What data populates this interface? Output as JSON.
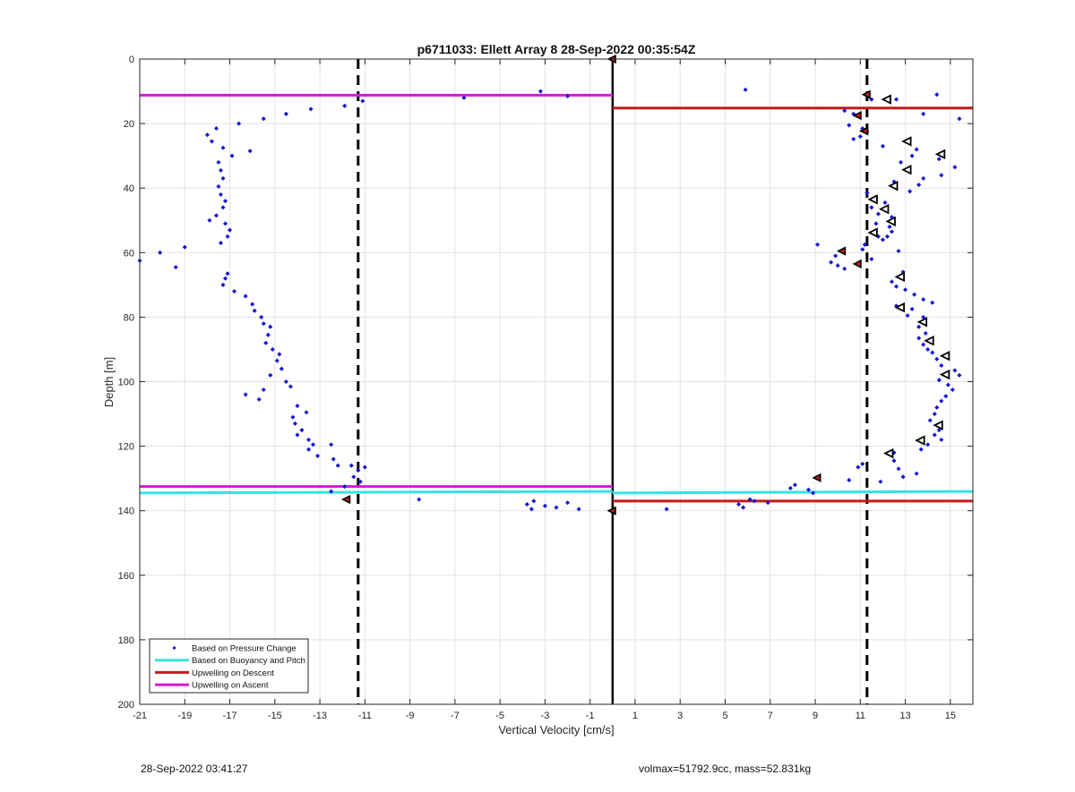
{
  "footer": {
    "left": "28-Sep-2022 03:41:27",
    "right": "volmax=51792.9cc, mass=52.831kg"
  },
  "colors": {
    "pressure": "#1515d6",
    "buoyancy": "#33e3e3",
    "descent": "#c41a1a",
    "ascent": "#d916d9",
    "grid": "#e3e3e3",
    "axis": "#262626"
  },
  "chart_data": {
    "type": "scatter",
    "title": "p6711033: Ellett Array 8 28-Sep-2022 00:35:54Z",
    "xlabel": "Vertical Velocity [cm/s]",
    "ylabel": "Depth [m]",
    "xlim": [
      -21,
      16
    ],
    "ylim": [
      0,
      200
    ],
    "y_reversed": true,
    "grid": true,
    "legend_position": "bottom-left",
    "x_ticks": [
      -21,
      -19,
      -17,
      -15,
      -13,
      -11,
      -9,
      -7,
      -5,
      -3,
      -1,
      1,
      3,
      5,
      7,
      9,
      11,
      13,
      15
    ],
    "y_ticks": [
      0,
      20,
      40,
      60,
      80,
      100,
      120,
      140,
      160,
      180,
      200
    ],
    "reference_lines": [
      {
        "style": "dashed",
        "x": -11.3
      },
      {
        "style": "dashed",
        "x": 11.3
      },
      {
        "style": "solid",
        "x": 0
      }
    ],
    "series": [
      {
        "name": "Based on Pressure Change",
        "marker": "dot",
        "points": [
          [
            -21,
            62.5
          ],
          [
            -20.1,
            60
          ],
          [
            -19.4,
            64.5
          ],
          [
            -19,
            58.3
          ],
          [
            -18,
            23.5
          ],
          [
            -17.6,
            21.5
          ],
          [
            -17.8,
            25.5
          ],
          [
            -17.3,
            27.5
          ],
          [
            -17.5,
            32
          ],
          [
            -17.4,
            34.5
          ],
          [
            -17.3,
            37
          ],
          [
            -17.5,
            39.5
          ],
          [
            -17.4,
            42
          ],
          [
            -17.2,
            44
          ],
          [
            -17.3,
            46
          ],
          [
            -17.6,
            48.5
          ],
          [
            -17.9,
            50
          ],
          [
            -17.2,
            51
          ],
          [
            -17,
            53
          ],
          [
            -17.1,
            55
          ],
          [
            -17.4,
            57
          ],
          [
            -16.9,
            30
          ],
          [
            -16.6,
            20
          ],
          [
            -16.1,
            28.5
          ],
          [
            -15.5,
            18.5
          ],
          [
            -14.5,
            17
          ],
          [
            -13.4,
            15.5
          ],
          [
            -11.9,
            14.5
          ],
          [
            -11.1,
            13
          ],
          [
            -17.1,
            66.5
          ],
          [
            -17.2,
            68
          ],
          [
            -17.3,
            70
          ],
          [
            -16.8,
            72
          ],
          [
            -16.3,
            73.5
          ],
          [
            -16,
            76
          ],
          [
            -15.9,
            78
          ],
          [
            -15.6,
            80
          ],
          [
            -15.5,
            82
          ],
          [
            -15.2,
            83
          ],
          [
            -15.3,
            85.5
          ],
          [
            -15.4,
            88
          ],
          [
            -15.1,
            90
          ],
          [
            -14.8,
            91.5
          ],
          [
            -14.9,
            93.5
          ],
          [
            -14.7,
            96
          ],
          [
            -15.2,
            98
          ],
          [
            -14.5,
            100
          ],
          [
            -14.3,
            101.5
          ],
          [
            -15.5,
            102.5
          ],
          [
            -16.3,
            104
          ],
          [
            -15.7,
            105.5
          ],
          [
            -14,
            107.5
          ],
          [
            -13.6,
            109.5
          ],
          [
            -14.2,
            111
          ],
          [
            -14.1,
            113
          ],
          [
            -13.8,
            115
          ],
          [
            -14,
            116.5
          ],
          [
            -13.5,
            118
          ],
          [
            -13.3,
            119.5
          ],
          [
            -13.5,
            121
          ],
          [
            -13.1,
            123
          ],
          [
            -12.5,
            119.5
          ],
          [
            -12.4,
            124
          ],
          [
            -12.2,
            126
          ],
          [
            -11.6,
            126
          ],
          [
            -11.3,
            127.5
          ],
          [
            -11,
            126.5
          ],
          [
            -11.5,
            129.5
          ],
          [
            -11.2,
            131
          ],
          [
            -11.9,
            132.5
          ],
          [
            -12.5,
            134
          ],
          [
            -8.6,
            136.5
          ],
          [
            -6.6,
            12
          ],
          [
            -3.2,
            10
          ],
          [
            -2,
            11.5
          ],
          [
            -3.8,
            138
          ],
          [
            -3.5,
            137
          ],
          [
            -3.6,
            139.5
          ],
          [
            -3,
            138.5
          ],
          [
            -2.5,
            139
          ],
          [
            -2,
            137.5
          ],
          [
            -1.5,
            139.5
          ],
          [
            5.9,
            9.5
          ],
          [
            10.3,
            16
          ],
          [
            11.5,
            12.5
          ],
          [
            12.6,
            12.5
          ],
          [
            14.4,
            11
          ],
          [
            13.8,
            17
          ],
          [
            15.4,
            18.5
          ],
          [
            10.7,
            17
          ],
          [
            10.5,
            20.5
          ],
          [
            11.1,
            21.5
          ],
          [
            11.3,
            22.5
          ],
          [
            11,
            24
          ],
          [
            10.7,
            24.8
          ],
          [
            12,
            27
          ],
          [
            13.5,
            28
          ],
          [
            13.3,
            30
          ],
          [
            12.8,
            32
          ],
          [
            14.5,
            31
          ],
          [
            15.2,
            33.5
          ],
          [
            14.6,
            36
          ],
          [
            13.8,
            37
          ],
          [
            12.5,
            38
          ],
          [
            13.6,
            39
          ],
          [
            13.2,
            41
          ],
          [
            11.3,
            41.5
          ],
          [
            11.7,
            43
          ],
          [
            12.1,
            44.5
          ],
          [
            11.5,
            46
          ],
          [
            11.8,
            48
          ],
          [
            12.4,
            49
          ],
          [
            11.7,
            51
          ],
          [
            12.3,
            52
          ],
          [
            12.4,
            53.5
          ],
          [
            12.2,
            55
          ],
          [
            11.8,
            55
          ],
          [
            12,
            56
          ],
          [
            11.2,
            57.5
          ],
          [
            9.1,
            57.5
          ],
          [
            11.1,
            59
          ],
          [
            12.7,
            59.5
          ],
          [
            9.9,
            61
          ],
          [
            9.7,
            63
          ],
          [
            10,
            64
          ],
          [
            10.3,
            65
          ],
          [
            11.5,
            62
          ],
          [
            12.9,
            66
          ],
          [
            12.4,
            69
          ],
          [
            12.6,
            70.5
          ],
          [
            13,
            71.5
          ],
          [
            13.4,
            73
          ],
          [
            13.8,
            74.5
          ],
          [
            14.2,
            75.5
          ],
          [
            12.6,
            76.5
          ],
          [
            13.3,
            77.5
          ],
          [
            13.1,
            79.5
          ],
          [
            13.8,
            80
          ],
          [
            13.6,
            83
          ],
          [
            13.9,
            85
          ],
          [
            13.6,
            86.5
          ],
          [
            13.8,
            88.5
          ],
          [
            14,
            90
          ],
          [
            14.2,
            91
          ],
          [
            14.4,
            93
          ],
          [
            14.6,
            95
          ],
          [
            15.2,
            96.5
          ],
          [
            15.4,
            98
          ],
          [
            14.5,
            99.5
          ],
          [
            14.9,
            101
          ],
          [
            15.1,
            102.5
          ],
          [
            14.8,
            104.5
          ],
          [
            14.6,
            106
          ],
          [
            14.4,
            108
          ],
          [
            14.3,
            110
          ],
          [
            14.1,
            112
          ],
          [
            14.5,
            115
          ],
          [
            14.3,
            116.5
          ],
          [
            14.6,
            118
          ],
          [
            14,
            119.5
          ],
          [
            13.7,
            121
          ],
          [
            12.5,
            122
          ],
          [
            12.5,
            124.5
          ],
          [
            11.1,
            125.5
          ],
          [
            10.9,
            126.5
          ],
          [
            12.7,
            127
          ],
          [
            13.5,
            128.5
          ],
          [
            12.9,
            129.5
          ],
          [
            11.9,
            131
          ],
          [
            10.5,
            130.5
          ],
          [
            8.1,
            132
          ],
          [
            7.9,
            133
          ],
          [
            8.7,
            133.5
          ],
          [
            8.9,
            134.5
          ],
          [
            5.6,
            138
          ],
          [
            5.8,
            139
          ],
          [
            6.3,
            137
          ],
          [
            6.9,
            137.5
          ],
          [
            6.1,
            136.5
          ],
          [
            2.4,
            139.5
          ]
        ]
      },
      {
        "name": "Based on Buoyancy and Pitch",
        "segments": [
          {
            "x": [
              -21,
              0
            ],
            "y": [
              134.5,
              134
            ]
          },
          {
            "x": [
              0,
              16
            ],
            "y": [
              134.5,
              134
            ]
          }
        ]
      },
      {
        "name": "Upwelling on Descent",
        "segments": [
          {
            "x": [
              0,
              16
            ],
            "y": [
              15.2,
              15.2
            ]
          },
          {
            "x": [
              0,
              16
            ],
            "y": [
              137,
              137
            ]
          }
        ]
      },
      {
        "name": "Upwelling on Ascent",
        "segments": [
          {
            "x": [
              -21,
              0
            ],
            "y": [
              11.2,
              11.2
            ]
          },
          {
            "x": [
              -21,
              0
            ],
            "y": [
              132.5,
              132.5
            ]
          }
        ]
      },
      {
        "marker": "triangle-left-filled-red",
        "points": [
          [
            0,
            0
          ],
          [
            0,
            140
          ],
          [
            -11.8,
            136.5
          ],
          [
            11.3,
            11
          ],
          [
            10.9,
            17.5
          ],
          [
            11.2,
            22.3
          ],
          [
            10.2,
            59.5
          ],
          [
            10.9,
            63.5
          ],
          [
            9.1,
            129.8
          ]
        ]
      },
      {
        "marker": "triangle-open-black",
        "points": [
          [
            12.2,
            12.5
          ],
          [
            13.1,
            25.5
          ],
          [
            14.6,
            29.5
          ],
          [
            13.1,
            34.3
          ],
          [
            12.5,
            39.3
          ],
          [
            11.6,
            43.5
          ],
          [
            12.1,
            46.5
          ],
          [
            12.4,
            50.3
          ],
          [
            11.6,
            53.8
          ],
          [
            12.8,
            67.5
          ],
          [
            12.8,
            77
          ],
          [
            13.8,
            81.5
          ],
          [
            14.1,
            87.3
          ],
          [
            14.8,
            92
          ],
          [
            14.8,
            97.8
          ],
          [
            14.5,
            113.5
          ],
          [
            13.7,
            118.2
          ],
          [
            12.3,
            122.2
          ]
        ]
      }
    ]
  }
}
